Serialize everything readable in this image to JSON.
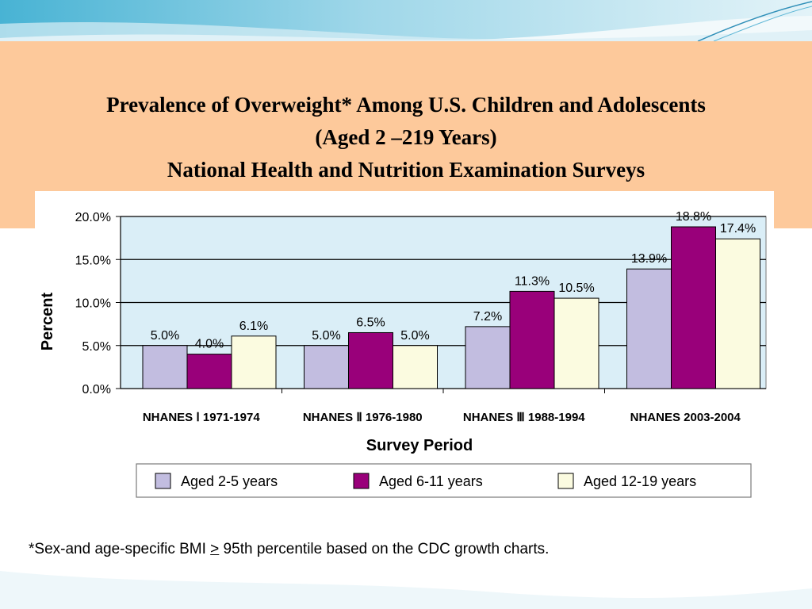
{
  "slide": {
    "title_lines": [
      "Prevalence of Overweight* Among U.S. Children and Adolescents",
      "(Aged 2 –2​19 Years)",
      "National Health and Nutrition Examination Surveys"
    ],
    "footnote": {
      "before": "*Sex-and age-specific BMI ",
      "symbol": ">",
      "after": " 95th percentile based on the CDC growth charts."
    },
    "colors": {
      "band": "#fdc99b",
      "wave_dark": "#5fb7d6",
      "wave_light": "#b7e2ef"
    }
  },
  "chart_data": {
    "type": "bar",
    "categories": [
      "NHANES Ⅰ 1971-1974",
      "NHANES Ⅱ 1976-1980",
      "NHANES Ⅲ 1988-1994",
      "NHANES 2003-2004"
    ],
    "series": [
      {
        "name": "Aged 2-5 years",
        "color": "#c2bde0",
        "values": [
          5.0,
          5.0,
          7.2,
          13.9
        ],
        "labels": [
          "5.0%",
          "5.0%",
          "7.2%",
          "13.9%"
        ]
      },
      {
        "name": "Aged 6-11 years",
        "color": "#99007a",
        "values": [
          4.0,
          6.5,
          11.3,
          18.8
        ],
        "labels": [
          "4.0%",
          "6.5%",
          "11.3%",
          "18.8%"
        ]
      },
      {
        "name": "Aged 12-19 years",
        "color": "#fbfbe0",
        "values": [
          6.1,
          5.0,
          10.5,
          17.4
        ],
        "labels": [
          "6.1%",
          "5.0%",
          "10.5%",
          "17.4%"
        ]
      }
    ],
    "yticks": [
      0,
      5,
      10,
      15,
      20
    ],
    "ytick_labels": [
      "0.0%",
      "5.0%",
      "10.0%",
      "15.0%",
      "20.0%"
    ],
    "ylim": [
      0,
      20
    ],
    "xlabel": "Survey Period",
    "ylabel": "Percent",
    "grid": true,
    "legend_position": "bottom",
    "plot_background": "#daeef7"
  }
}
